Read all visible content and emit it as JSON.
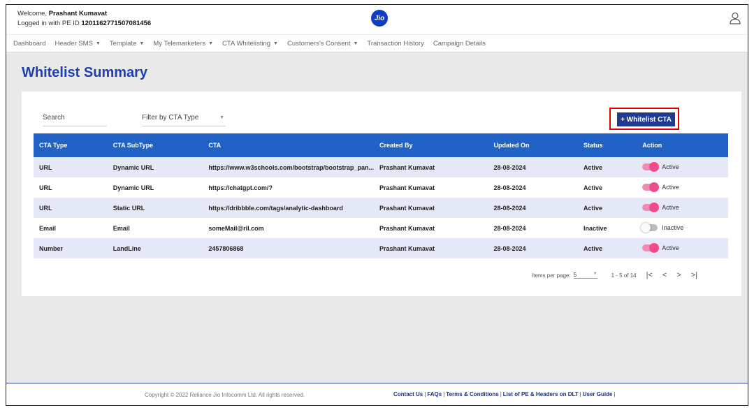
{
  "header": {
    "welcome_prefix": "Welcome, ",
    "user_name": "Prashant Kumavat",
    "login_prefix": "Logged in with PE ID ",
    "pe_id": "1201162771507081456",
    "logo_text": "Jio"
  },
  "nav": {
    "items": [
      {
        "label": "Dashboard",
        "dropdown": false
      },
      {
        "label": "Header SMS",
        "dropdown": true
      },
      {
        "label": "Template",
        "dropdown": true
      },
      {
        "label": "My Telemarketers",
        "dropdown": true
      },
      {
        "label": "CTA Whitelisting",
        "dropdown": true
      },
      {
        "label": "Customers's Consent",
        "dropdown": true
      },
      {
        "label": "Transaction History",
        "dropdown": false
      },
      {
        "label": "Campaign Details",
        "dropdown": false
      }
    ]
  },
  "page": {
    "title": "Whitelist Summary"
  },
  "controls": {
    "search_placeholder": "Search",
    "filter_label": "Filter by CTA Type",
    "whitelist_button": "+ Whitelist CTA"
  },
  "table": {
    "columns": [
      "CTA Type",
      "CTA SubType",
      "CTA",
      "Created By",
      "Updated On",
      "Status",
      "Action"
    ],
    "rows": [
      {
        "type": "URL",
        "subtype": "Dynamic URL",
        "cta": "https://www.w3schools.com/bootstrap/bootstrap_pan...",
        "created_by": "Prashant Kumavat",
        "updated_on": "28-08-2024",
        "status": "Active",
        "action_label": "Active",
        "toggle_on": true
      },
      {
        "type": "URL",
        "subtype": "Dynamic URL",
        "cta": "https://chatgpt.com/?",
        "created_by": "Prashant Kumavat",
        "updated_on": "28-08-2024",
        "status": "Active",
        "action_label": "Active",
        "toggle_on": true
      },
      {
        "type": "URL",
        "subtype": "Static URL",
        "cta": "https://dribbble.com/tags/analytic-dashboard",
        "created_by": "Prashant Kumavat",
        "updated_on": "28-08-2024",
        "status": "Active",
        "action_label": "Active",
        "toggle_on": true
      },
      {
        "type": "Email",
        "subtype": "Email",
        "cta": "someMail@ril.com",
        "created_by": "Prashant Kumavat",
        "updated_on": "28-08-2024",
        "status": "Inactive",
        "action_label": "Inactive",
        "toggle_on": false
      },
      {
        "type": "Number",
        "subtype": "LandLine",
        "cta": "2457806868",
        "created_by": "Prashant Kumavat",
        "updated_on": "28-08-2024",
        "status": "Active",
        "action_label": "Active",
        "toggle_on": true
      }
    ]
  },
  "pager": {
    "items_per_page_label": "Items per page:",
    "items_per_page": "5",
    "range": "1 - 5 of 14",
    "first": "|<",
    "prev": "<",
    "next": ">",
    "last": ">|"
  },
  "footer": {
    "copyright": "Copyright © 2022 Reliance Jio Infocomm Ltd. All rights reserved.",
    "links": [
      "Contact Us",
      "FAQs",
      "Terms & Conditions",
      "List of PE & Headers on DLT",
      "User Guide"
    ]
  },
  "colors": {
    "title_blue": "#1d3fb0",
    "table_header": "#2162c6",
    "button_navy": "#1f3a8f",
    "toggle_pink": "#f04b8a",
    "highlight_red": "#e00000"
  },
  "icons": [
    "user-icon",
    "caret-down-icon"
  ]
}
